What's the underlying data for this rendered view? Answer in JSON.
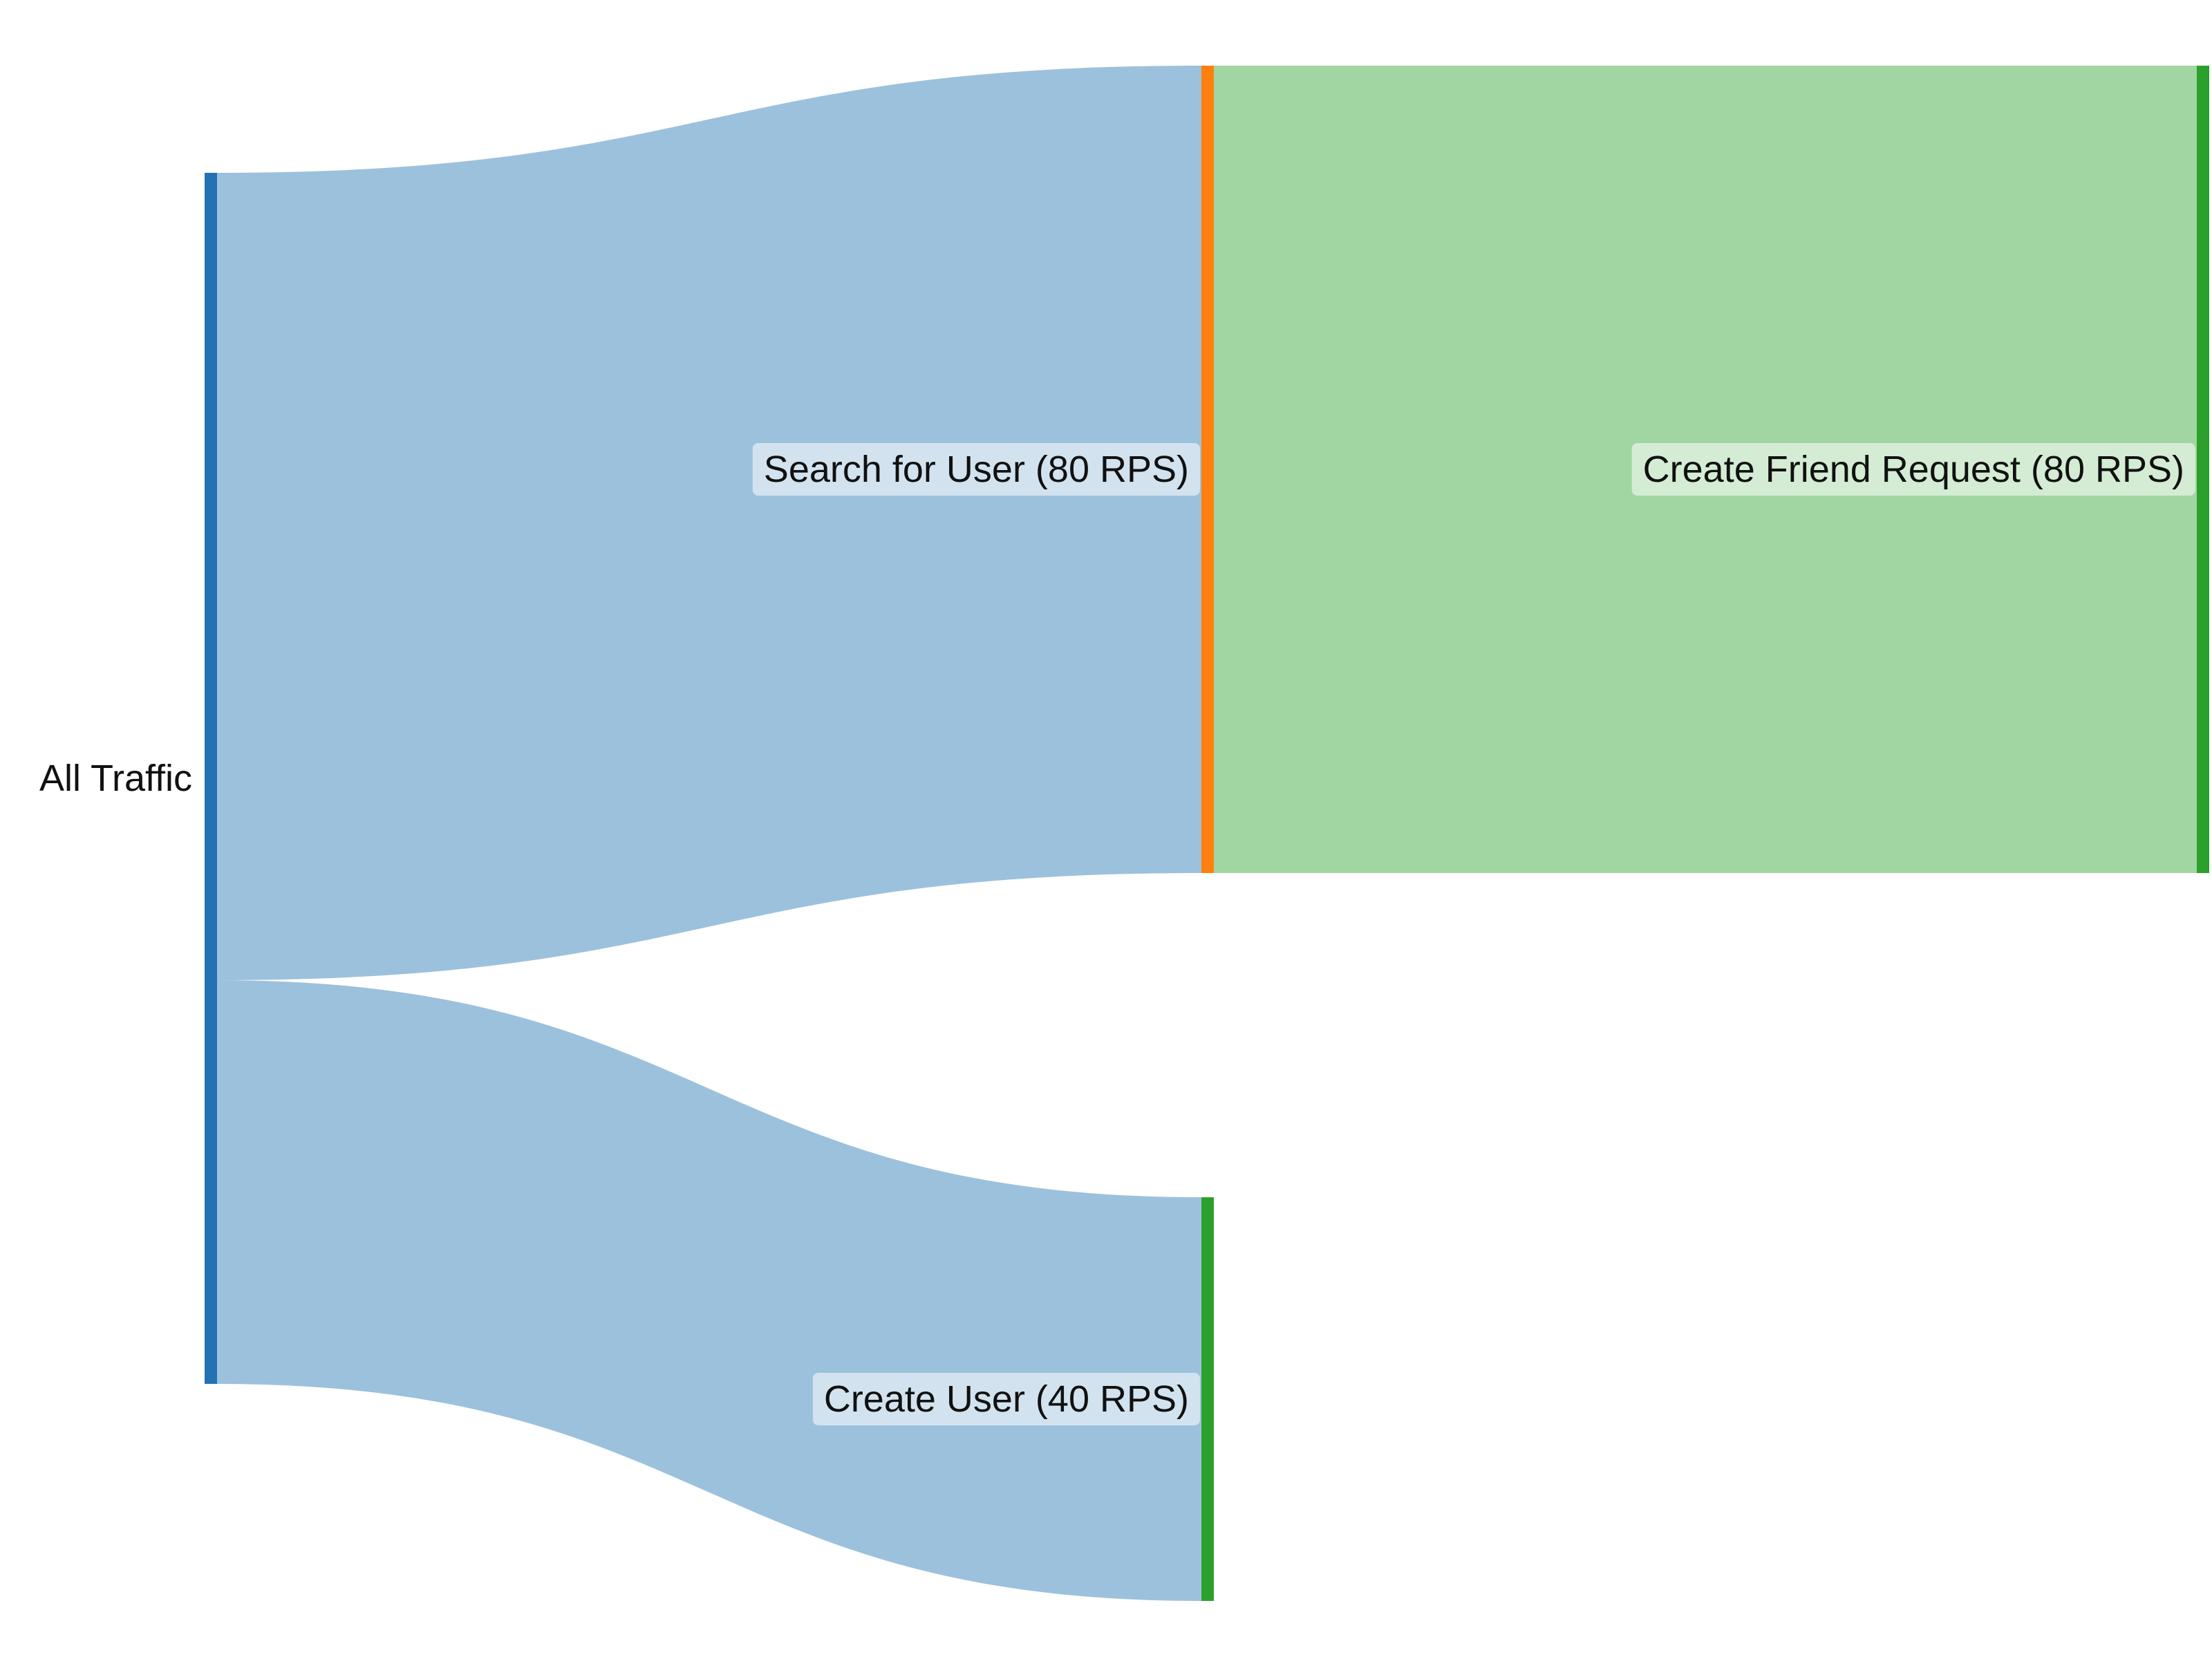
{
  "chart_data": {
    "type": "sankey",
    "title": "",
    "nodes": [
      {
        "id": "all",
        "label": "All Traffic",
        "color": "#2471b3"
      },
      {
        "id": "search",
        "label": "Search for User (80 RPS)",
        "color": "#ff7f0e"
      },
      {
        "id": "create_user",
        "label": "Create User (40 RPS)",
        "color": "#2ca02c"
      },
      {
        "id": "friend",
        "label": "Create Friend Request (80 RPS)",
        "color": "#2ca02c"
      }
    ],
    "links": [
      {
        "source": "all",
        "target": "search",
        "value": 80,
        "color": "#9cc1dc"
      },
      {
        "source": "all",
        "target": "create_user",
        "value": 40,
        "color": "#9cc1dc"
      },
      {
        "source": "search",
        "target": "friend",
        "value": 80,
        "color": "#a1d5a1"
      }
    ],
    "units": "RPS"
  }
}
